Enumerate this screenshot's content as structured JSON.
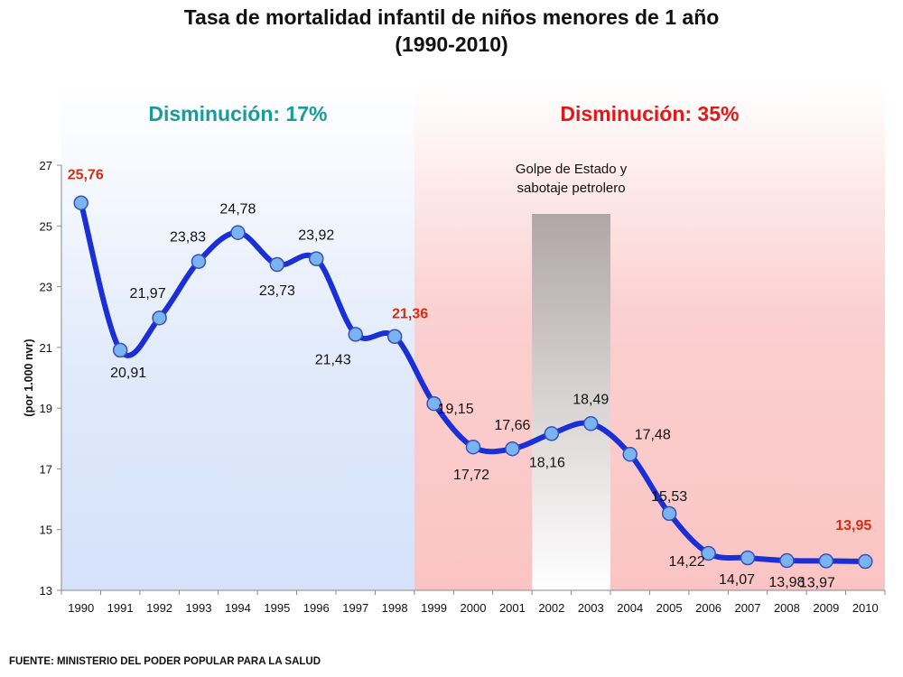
{
  "title": "Tasa de mortalidad infantil de niños menores de 1 año",
  "subtitle": "(1990-2010)",
  "source": "FUENTE: MINISTERIO DEL PODER POPULAR PARA LA SALUD",
  "regions": [
    {
      "label": "Disminución: 17%",
      "from": 1990,
      "to": 1998,
      "color": "#1a9a9a"
    },
    {
      "label": "Disminución: 35%",
      "from": 1999,
      "to": 2010,
      "color": "#e01818"
    }
  ],
  "annotation": {
    "lines": [
      "Golpe de Estado y",
      "sabotaje petrolero"
    ],
    "years": [
      2002,
      2003
    ]
  },
  "chart_data": {
    "type": "line",
    "ylabel": "(por 1.000 nvr)",
    "xlabel": "",
    "ylim": [
      13,
      27
    ],
    "yticks": [
      13,
      15,
      17,
      19,
      21,
      23,
      25,
      27
    ],
    "x": [
      1990,
      1991,
      1992,
      1993,
      1994,
      1995,
      1996,
      1997,
      1998,
      1999,
      2000,
      2001,
      2002,
      2003,
      2004,
      2005,
      2006,
      2007,
      2008,
      2009,
      2010
    ],
    "series": [
      {
        "values": [
          25.76,
          20.91,
          21.97,
          23.83,
          24.78,
          23.73,
          23.92,
          21.43,
          21.36,
          19.15,
          17.72,
          17.66,
          18.16,
          18.49,
          17.48,
          15.53,
          14.22,
          14.07,
          13.98,
          13.97,
          13.95
        ],
        "labels": [
          "25,76",
          "20,91",
          "21,97",
          "23,83",
          "24,78",
          "23,73",
          "23,92",
          "21,43",
          "21,36",
          "19,15",
          "17,72",
          "17,66",
          "18,16",
          "18,49",
          "17,48",
          "15,53",
          "14,22",
          "14,07",
          "13,98",
          "13,97",
          "13,95"
        ],
        "highlighted": [
          1990,
          1998,
          2010
        ],
        "color": "#1a2fd6",
        "marker_color": "#7ab4f0",
        "highlight_label_color": "#d03010"
      }
    ],
    "grid": false,
    "legend": "none"
  }
}
